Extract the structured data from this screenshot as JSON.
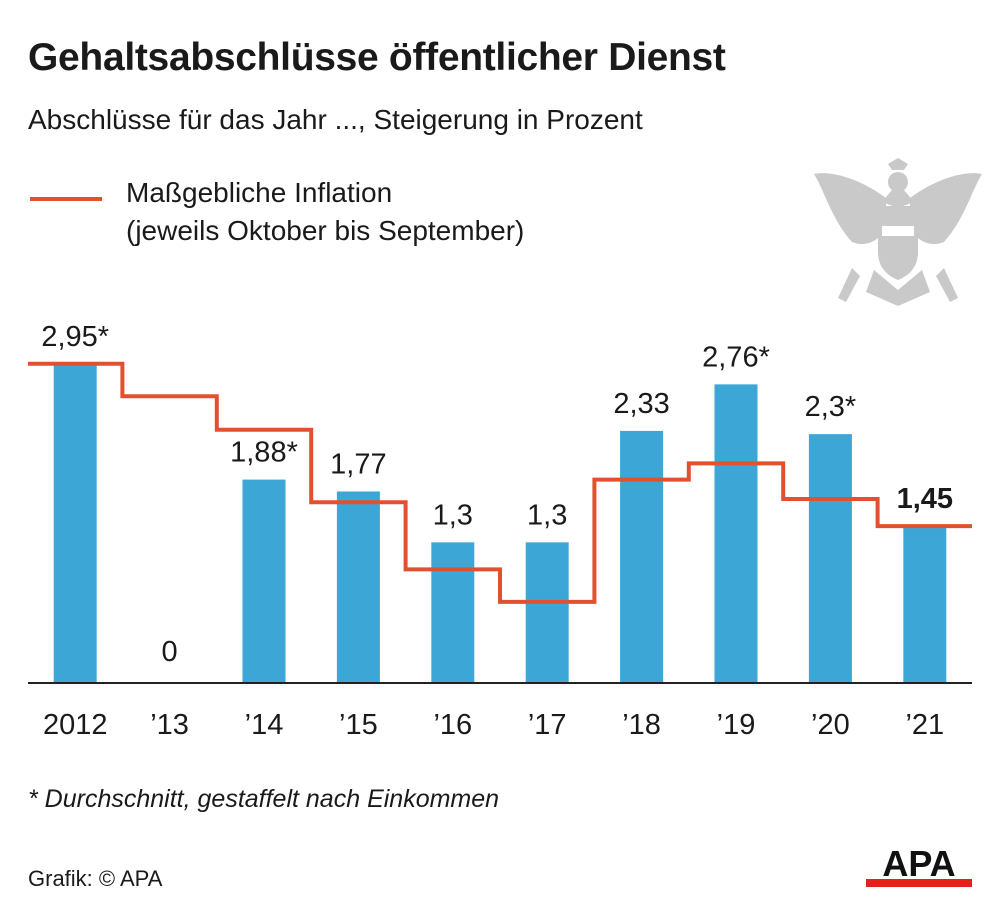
{
  "title": "Gehaltsabschlüsse öffentlicher Dienst",
  "subtitle": "Abschlüsse für das Jahr ..., Steigerung in Prozent",
  "legend": {
    "line1": "Maßgebliche Inflation",
    "line2": "(jeweils Oktober bis September)"
  },
  "footnote": "* Durchschnitt, gestaffelt nach Einkommen",
  "source": "Grafik: © APA",
  "logo_text": "APA",
  "icons": {
    "coat_of_arms": "austrian-eagle-icon"
  },
  "colors": {
    "bar": "#3ca7d6",
    "line": "#e2512f",
    "text": "#1a1a1a",
    "eagle": "#c8c8c8",
    "logo_red": "#e2231a"
  },
  "chart_data": {
    "type": "bar",
    "categories": [
      "2012",
      "’13",
      "’14",
      "’15",
      "’16",
      "’17",
      "’18",
      "’19",
      "’20",
      "’21"
    ],
    "values": [
      2.95,
      0,
      1.88,
      1.77,
      1.3,
      1.3,
      2.33,
      2.76,
      2.3,
      1.45
    ],
    "data_labels": [
      "2,95*",
      "0",
      "1,88*",
      "1,77",
      "1,3",
      "1,3",
      "2,33",
      "2,76*",
      "2,3*",
      "1,45"
    ],
    "highlight_index": 9,
    "series": [
      {
        "name": "Gehaltsabschluss",
        "type": "bar",
        "values": [
          2.95,
          0,
          1.88,
          1.77,
          1.3,
          1.3,
          2.33,
          2.76,
          2.3,
          1.45
        ]
      },
      {
        "name": "Maßgebliche Inflation",
        "type": "step-line",
        "values": [
          2.95,
          2.65,
          2.34,
          1.67,
          1.05,
          0.75,
          1.88,
          2.03,
          1.7,
          1.45
        ]
      }
    ],
    "ylim": [
      0,
      3.0
    ],
    "grid": false,
    "legend_position": "top-left",
    "xlabel": "",
    "ylabel": ""
  }
}
